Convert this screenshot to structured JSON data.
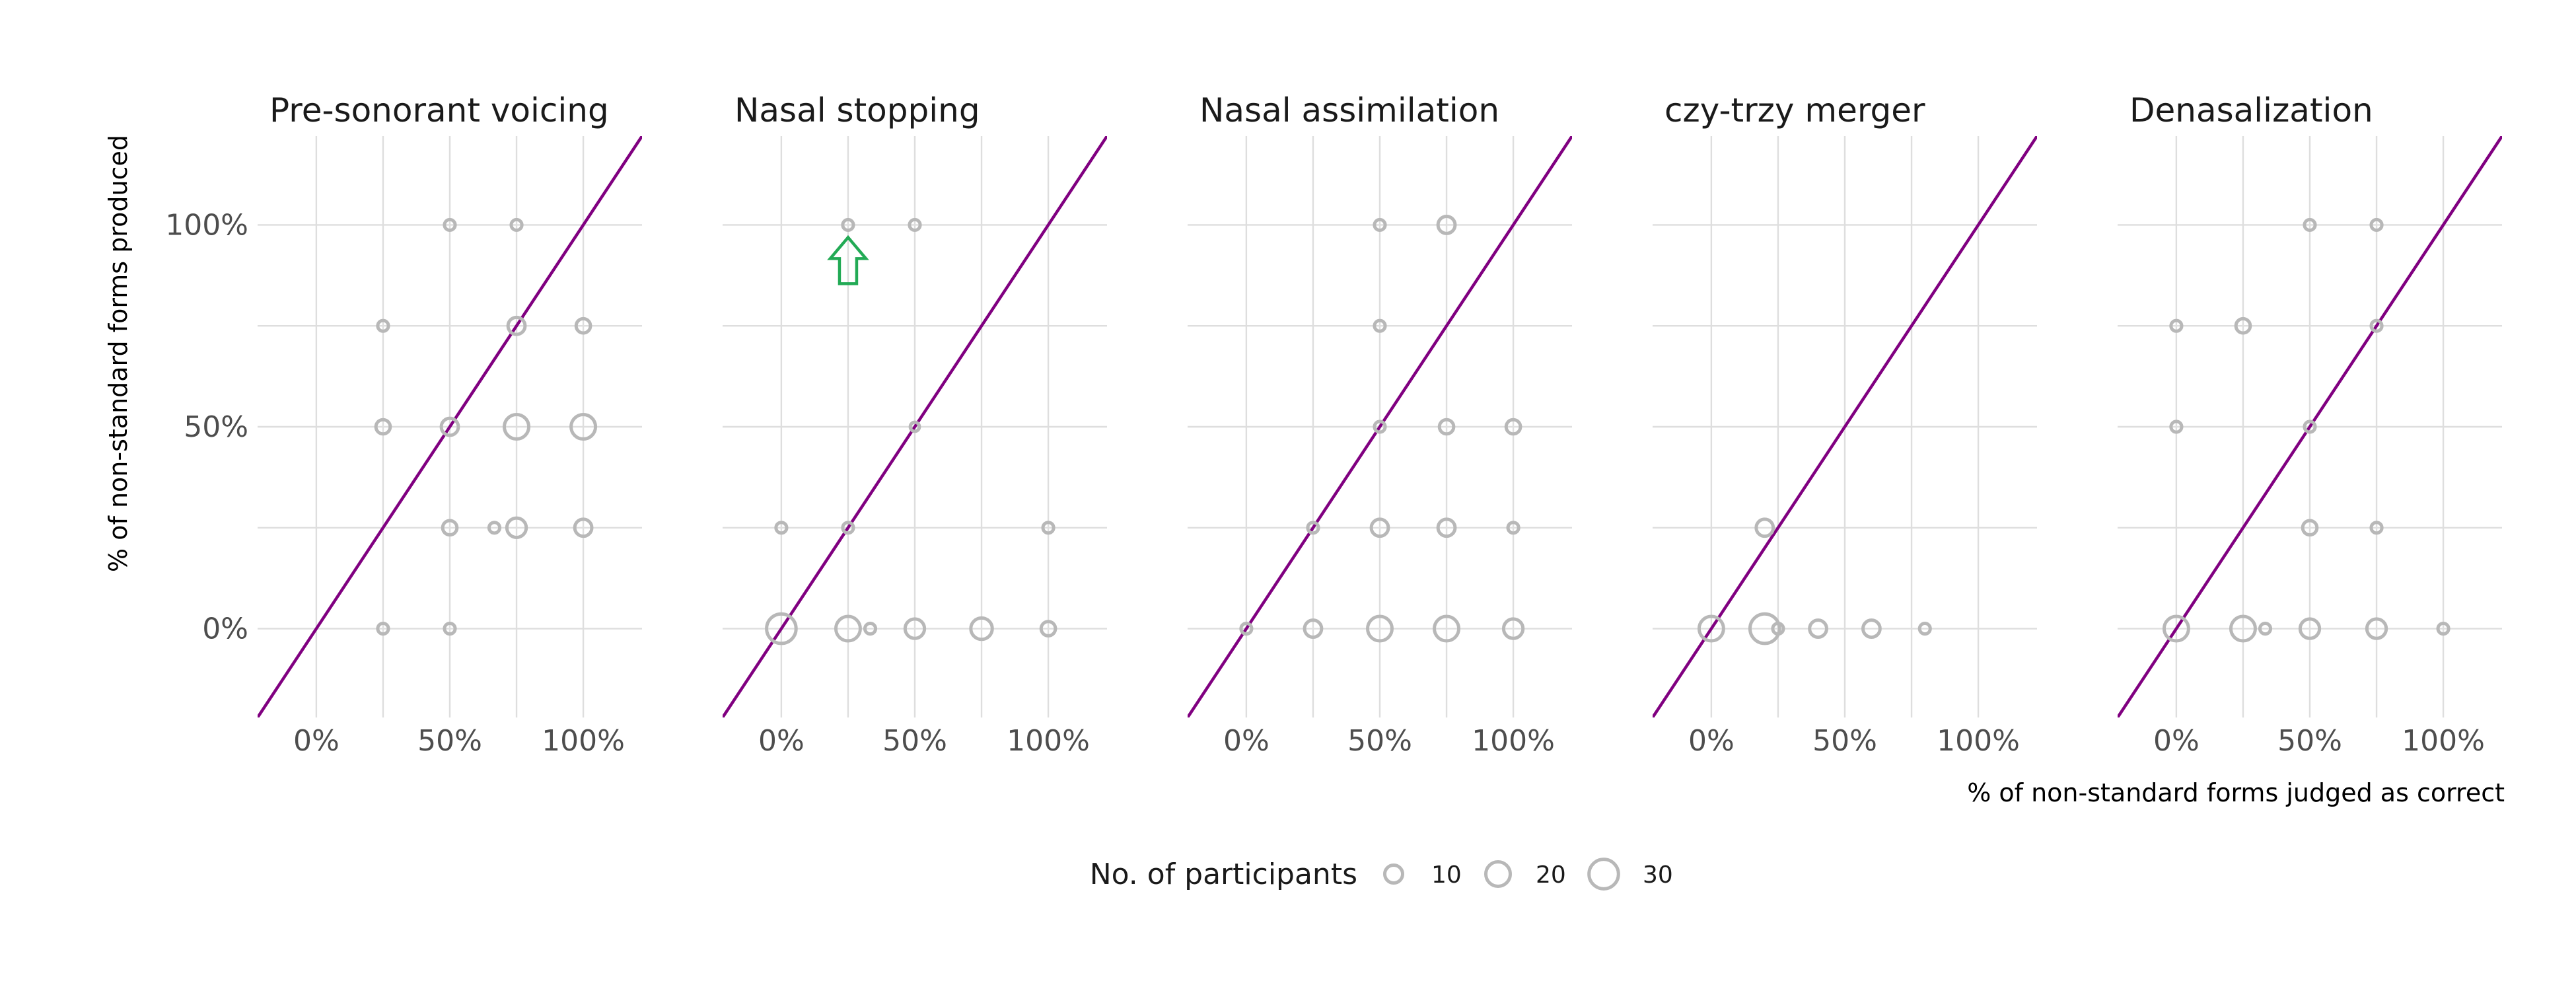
{
  "chart_data": {
    "type": "scatter",
    "y_axis_title": "% of non-standard forms produced",
    "x_axis_title": "% of non-standard forms judged as correct",
    "x_ticks": [
      0,
      0.5,
      1
    ],
    "y_ticks": [
      0,
      0.5,
      1
    ],
    "tick_labels": [
      "0%",
      "50%",
      "100%"
    ],
    "xlim": [
      -0.22,
      1.22
    ],
    "ylim": [
      -0.22,
      1.22
    ],
    "reference_line": {
      "slope": 1,
      "intercept": 0,
      "color": "#800080"
    },
    "point_color": "#b8b8b8",
    "grid": true,
    "legend": {
      "title": "No. of participants",
      "placement": "bottom-center",
      "sizes": [
        10,
        20,
        30
      ],
      "labels": [
        "10",
        "20",
        "30"
      ]
    },
    "panels": [
      {
        "title": "Pre-sonorant voicing",
        "points": [
          {
            "x": 0.5,
            "y": 1.0,
            "n": 3
          },
          {
            "x": 0.75,
            "y": 1.0,
            "n": 3
          },
          {
            "x": 0.25,
            "y": 0.75,
            "n": 3
          },
          {
            "x": 0.75,
            "y": 0.75,
            "n": 9
          },
          {
            "x": 1.0,
            "y": 0.75,
            "n": 6
          },
          {
            "x": 0.25,
            "y": 0.5,
            "n": 6
          },
          {
            "x": 0.5,
            "y": 0.5,
            "n": 9
          },
          {
            "x": 0.75,
            "y": 0.5,
            "n": 20
          },
          {
            "x": 1.0,
            "y": 0.5,
            "n": 20
          },
          {
            "x": 0.5,
            "y": 0.25,
            "n": 6
          },
          {
            "x": 0.667,
            "y": 0.25,
            "n": 3
          },
          {
            "x": 0.75,
            "y": 0.25,
            "n": 12
          },
          {
            "x": 1.0,
            "y": 0.25,
            "n": 9
          },
          {
            "x": 0.25,
            "y": 0.0,
            "n": 3
          },
          {
            "x": 0.5,
            "y": 0.0,
            "n": 3
          }
        ]
      },
      {
        "title": "Nasal stopping",
        "annotation": {
          "type": "arrow-up",
          "color": "#22aa55",
          "x": 0.25,
          "y": 0.92
        },
        "points": [
          {
            "x": 0.25,
            "y": 1.0,
            "n": 3
          },
          {
            "x": 0.5,
            "y": 1.0,
            "n": 3
          },
          {
            "x": 0.5,
            "y": 0.5,
            "n": 2
          },
          {
            "x": 0.0,
            "y": 0.25,
            "n": 3
          },
          {
            "x": 0.25,
            "y": 0.25,
            "n": 3
          },
          {
            "x": 1.0,
            "y": 0.25,
            "n": 3
          },
          {
            "x": 0.0,
            "y": 0.0,
            "n": 30
          },
          {
            "x": 0.25,
            "y": 0.0,
            "n": 20
          },
          {
            "x": 0.333,
            "y": 0.0,
            "n": 3
          },
          {
            "x": 0.5,
            "y": 0.0,
            "n": 12
          },
          {
            "x": 0.75,
            "y": 0.0,
            "n": 15
          },
          {
            "x": 1.0,
            "y": 0.0,
            "n": 6
          }
        ]
      },
      {
        "title": "Nasal assimilation",
        "points": [
          {
            "x": 0.5,
            "y": 1.0,
            "n": 3
          },
          {
            "x": 0.75,
            "y": 1.0,
            "n": 9
          },
          {
            "x": 0.5,
            "y": 0.75,
            "n": 3
          },
          {
            "x": 0.5,
            "y": 0.5,
            "n": 3
          },
          {
            "x": 0.75,
            "y": 0.5,
            "n": 6
          },
          {
            "x": 1.0,
            "y": 0.5,
            "n": 6
          },
          {
            "x": 0.25,
            "y": 0.25,
            "n": 3
          },
          {
            "x": 0.5,
            "y": 0.25,
            "n": 9
          },
          {
            "x": 0.75,
            "y": 0.25,
            "n": 9
          },
          {
            "x": 1.0,
            "y": 0.25,
            "n": 3
          },
          {
            "x": 0.0,
            "y": 0.0,
            "n": 3
          },
          {
            "x": 0.25,
            "y": 0.0,
            "n": 9
          },
          {
            "x": 0.5,
            "y": 0.0,
            "n": 20
          },
          {
            "x": 0.75,
            "y": 0.0,
            "n": 20
          },
          {
            "x": 1.0,
            "y": 0.0,
            "n": 12
          }
        ]
      },
      {
        "title": "czy-trzy merger",
        "points": [
          {
            "x": 0.2,
            "y": 0.25,
            "n": 9
          },
          {
            "x": 0.0,
            "y": 0.0,
            "n": 20
          },
          {
            "x": 0.2,
            "y": 0.0,
            "n": 30
          },
          {
            "x": 0.25,
            "y": 0.0,
            "n": 3
          },
          {
            "x": 0.4,
            "y": 0.0,
            "n": 9
          },
          {
            "x": 0.6,
            "y": 0.0,
            "n": 9
          },
          {
            "x": 0.8,
            "y": 0.0,
            "n": 3
          }
        ]
      },
      {
        "title": "Denasalization",
        "points": [
          {
            "x": 0.5,
            "y": 1.0,
            "n": 3
          },
          {
            "x": 0.75,
            "y": 1.0,
            "n": 3
          },
          {
            "x": 0.0,
            "y": 0.75,
            "n": 3
          },
          {
            "x": 0.25,
            "y": 0.75,
            "n": 6
          },
          {
            "x": 0.75,
            "y": 0.75,
            "n": 3
          },
          {
            "x": 0.0,
            "y": 0.5,
            "n": 3
          },
          {
            "x": 0.5,
            "y": 0.5,
            "n": 3
          },
          {
            "x": 0.5,
            "y": 0.25,
            "n": 6
          },
          {
            "x": 0.75,
            "y": 0.25,
            "n": 3
          },
          {
            "x": 0.0,
            "y": 0.0,
            "n": 20
          },
          {
            "x": 0.25,
            "y": 0.0,
            "n": 20
          },
          {
            "x": 0.333,
            "y": 0.0,
            "n": 3
          },
          {
            "x": 0.5,
            "y": 0.0,
            "n": 12
          },
          {
            "x": 0.75,
            "y": 0.0,
            "n": 12
          },
          {
            "x": 1.0,
            "y": 0.0,
            "n": 3
          }
        ]
      }
    ]
  }
}
